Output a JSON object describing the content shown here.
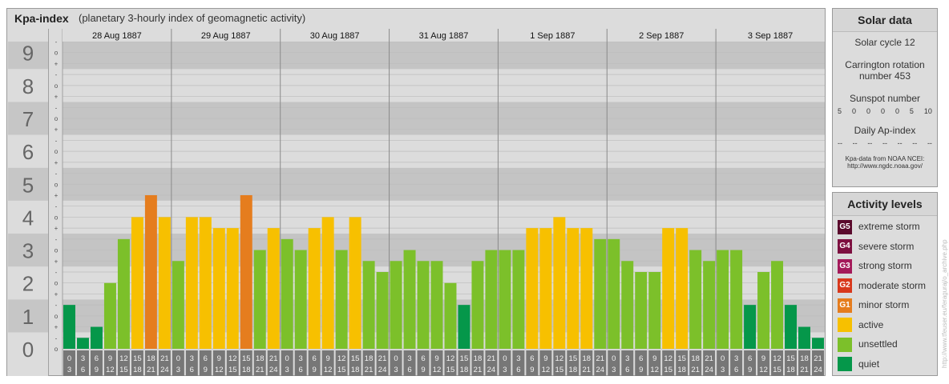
{
  "header": {
    "title": "Kpa-index",
    "subtitle": "(planetary 3-hourly index of geomagnetic activity)"
  },
  "solar": {
    "heading": "Solar data",
    "cycle": "Solar cycle 12",
    "carrington_line1": "Carrington rotation",
    "carrington_line2": "number 453",
    "sunspot_label": "Sunspot number",
    "sunspot_values": [
      "5",
      "0",
      "0",
      "0",
      "0",
      "5",
      "10"
    ],
    "ap_label": "Daily Ap-index",
    "ap_values": [
      "--",
      "--",
      "--",
      "--",
      "--",
      "--",
      "--"
    ],
    "source_line1": "Kpa-data from NOAA NCEI:",
    "source_line2": "http://www.ngdc.noaa.gov/"
  },
  "legend": {
    "heading": "Activity levels",
    "items": [
      {
        "code": "G5",
        "label": "extreme storm",
        "color": "#5a0a2c"
      },
      {
        "code": "G4",
        "label": "severe storm",
        "color": "#7d1040"
      },
      {
        "code": "G3",
        "label": "strong storm",
        "color": "#a41a5a"
      },
      {
        "code": "G2",
        "label": "moderate storm",
        "color": "#d8381c"
      },
      {
        "code": "G1",
        "label": "minor storm",
        "color": "#e57d1e"
      },
      {
        "code": "",
        "label": "active",
        "color": "#f7c000"
      },
      {
        "code": "",
        "label": "unsettled",
        "color": "#7cc02a"
      },
      {
        "code": "",
        "label": "quiet",
        "color": "#05974a"
      }
    ]
  },
  "credit": "http://www.tfeuser.eu/feraguraj/o_archive.php",
  "chart_data": {
    "type": "bar",
    "title": "Kpa-index",
    "ylim": [
      0,
      9
    ],
    "y_ticks": [
      "0",
      "1",
      "2",
      "3",
      "4",
      "5",
      "6",
      "7",
      "8",
      "9"
    ],
    "sub_tick_labels": [
      "o",
      "-",
      "+"
    ],
    "days": [
      "28 Aug 1887",
      "29 Aug 1887",
      "30 Aug 1887",
      "31 Aug 1887",
      "1 Sep 1887",
      "2 Sep 1887",
      "3 Sep 1887"
    ],
    "interval_top": [
      "0",
      "3",
      "6",
      "9",
      "12",
      "15",
      "18",
      "21"
    ],
    "interval_bottom": [
      "3",
      "6",
      "9",
      "12",
      "15",
      "18",
      "21",
      "24"
    ],
    "values": [
      1.333,
      0.333,
      0.667,
      2.0,
      3.333,
      4.0,
      4.667,
      4.0,
      2.667,
      4.0,
      4.0,
      3.667,
      3.667,
      4.667,
      3.0,
      3.667,
      3.333,
      3.0,
      3.667,
      4.0,
      3.0,
      4.0,
      2.667,
      2.333,
      2.667,
      3.0,
      2.667,
      2.667,
      2.0,
      1.333,
      2.667,
      3.0,
      3.0,
      3.0,
      3.667,
      3.667,
      4.0,
      3.667,
      3.667,
      3.333,
      3.333,
      2.667,
      2.333,
      2.333,
      3.667,
      3.667,
      3.0,
      2.667,
      3.0,
      3.0,
      1.333,
      2.333,
      2.667,
      1.333,
      0.667,
      0.333
    ],
    "colors": {
      "quiet": "#05974a",
      "unsettled": "#7cc02a",
      "active": "#f7c000",
      "minor_storm": "#e57d1e",
      "band_dark": "#c4c4c4",
      "band_light": "#dcdcdc",
      "grid": "#bcbcbc",
      "axis_block": "#777777"
    },
    "grid": true,
    "legend_position": "right"
  }
}
